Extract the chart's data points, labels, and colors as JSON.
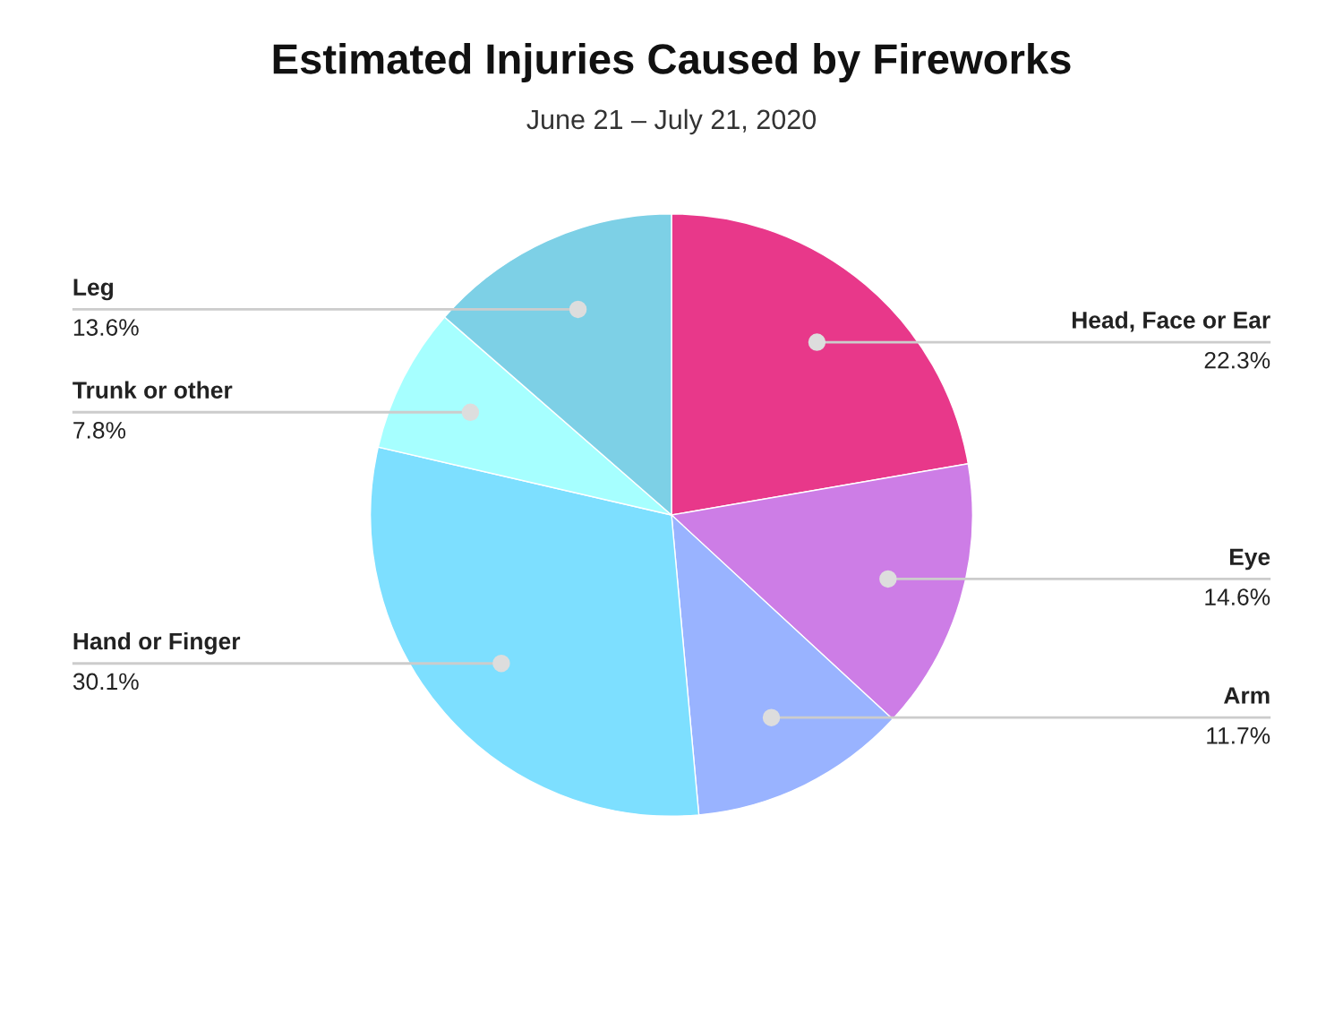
{
  "chart_data": {
    "type": "pie",
    "title": "Estimated Injuries Caused by Fireworks",
    "subtitle": "June 21 – July 21, 2020",
    "categories": [
      "Head, Face or Ear",
      "Eye",
      "Arm",
      "Hand or Finger",
      "Trunk or other",
      "Leg"
    ],
    "values": [
      22.3,
      14.6,
      11.7,
      30.1,
      7.8,
      13.6
    ],
    "colors": [
      "#e8388a",
      "#cd7de6",
      "#99b3ff",
      "#7ddfff",
      "#a6ffff",
      "#7dd0e6"
    ],
    "value_labels": [
      "22.3%",
      "14.6%",
      "11.7%",
      "30.1%",
      "7.8%",
      "13.6%"
    ]
  }
}
